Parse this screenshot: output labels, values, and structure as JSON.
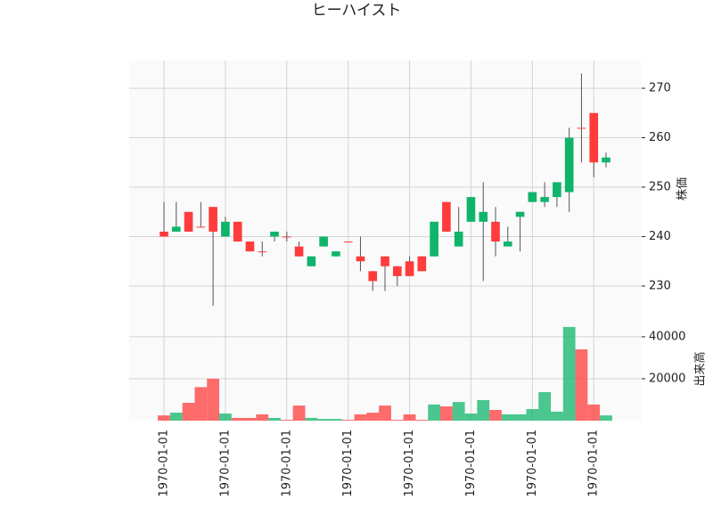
{
  "chart_data": {
    "type": "candlestick",
    "title": "ヒーハイスト",
    "ylabel": "株価",
    "y2label": "出来高",
    "categories": [
      "1970-01-01",
      null,
      null,
      null,
      null,
      "1970-01-01",
      null,
      null,
      null,
      null,
      "1970-01-01",
      null,
      null,
      null,
      null,
      "1970-01-01",
      null,
      null,
      null,
      null,
      "1970-01-01",
      null,
      null,
      null,
      null,
      "1970-01-01",
      null,
      null,
      null,
      null,
      "1970-01-01",
      null,
      null,
      null,
      null,
      "1970-01-01",
      null
    ],
    "open": [
      241,
      241,
      245,
      242,
      246,
      240,
      243,
      239,
      237,
      240,
      240,
      238,
      234,
      238,
      236,
      239,
      236,
      233,
      236,
      234,
      235,
      236,
      236,
      247,
      238,
      243,
      243,
      243,
      238,
      244,
      247,
      247,
      248,
      249,
      262,
      265,
      255
    ],
    "high": [
      247,
      247,
      245,
      247,
      246,
      244,
      243,
      239,
      239,
      241,
      241,
      239,
      236,
      240,
      237,
      239,
      240,
      233,
      236,
      234,
      236,
      236,
      243,
      247,
      246,
      248,
      251,
      246,
      242,
      245,
      249,
      251,
      251,
      262,
      273,
      265,
      257
    ],
    "low": [
      240,
      241,
      241,
      242,
      226,
      240,
      239,
      237,
      236,
      239,
      239,
      236,
      234,
      238,
      236,
      239,
      233,
      229,
      229,
      230,
      232,
      233,
      236,
      241,
      238,
      243,
      231,
      236,
      238,
      237,
      247,
      246,
      246,
      245,
      255,
      252,
      254
    ],
    "close": [
      240,
      242,
      241,
      242,
      241,
      243,
      239,
      237,
      237,
      241,
      240,
      236,
      236,
      240,
      237,
      239,
      235,
      231,
      234,
      232,
      232,
      233,
      243,
      241,
      241,
      248,
      245,
      239,
      239,
      245,
      249,
      248,
      251,
      260,
      262,
      255,
      256
    ],
    "volume": [
      2500,
      3800,
      8500,
      16000,
      20000,
      3400,
      1300,
      1300,
      3000,
      1300,
      400,
      7200,
      1300,
      800,
      800,
      400,
      3000,
      3800,
      7200,
      400,
      3000,
      400,
      7700,
      6800,
      8900,
      3400,
      9800,
      5100,
      3000,
      3000,
      5500,
      13600,
      4300,
      44700,
      34000,
      7700,
      2500
    ],
    "up_color": "#0fb46a",
    "down_color": "#ff3b3b",
    "ylim": [
      223.5,
      275.6
    ],
    "yticks": [
      230,
      240,
      250,
      260,
      270
    ],
    "y2lim": [
      0,
      48900
    ],
    "y2ticks": [
      20000,
      40000
    ],
    "grid": true
  }
}
